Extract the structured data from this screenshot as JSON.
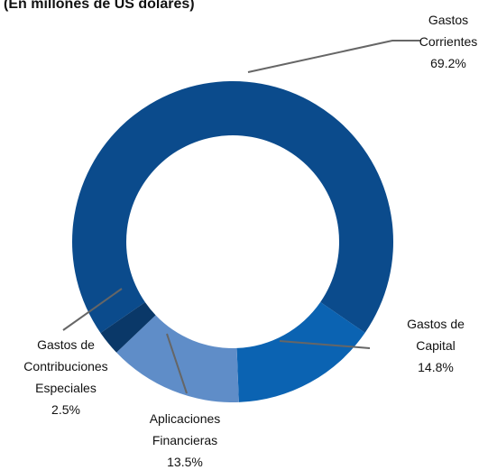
{
  "chart_data": {
    "type": "donut",
    "subtitle": "(En millones de US dólares)",
    "categories": [
      "Gastos Corrientes",
      "Gastos de Capital",
      "Aplicaciones Financieras",
      "Gastos de Contribuciones Especiales"
    ],
    "values": [
      69.2,
      14.8,
      13.5,
      2.5
    ],
    "value_labels": [
      "69.2%",
      "14.8%",
      "13.5%",
      "2.5%"
    ],
    "colors": [
      "#0b4b8c",
      "#0b63b2",
      "#5f8dc8",
      "#0a3868"
    ]
  }
}
